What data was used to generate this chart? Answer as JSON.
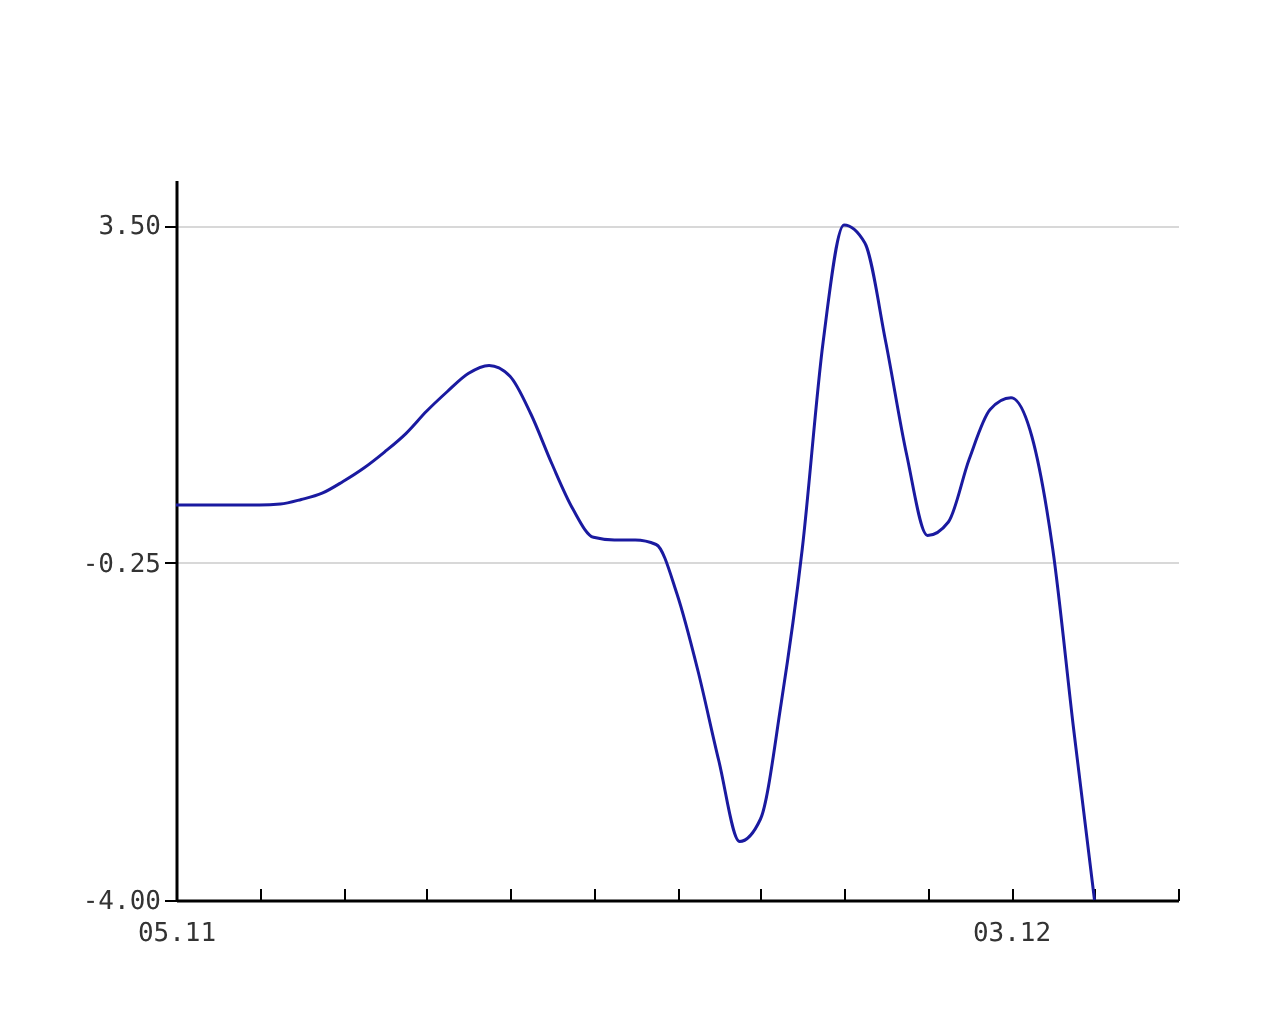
{
  "chart_data": {
    "type": "line",
    "categories": [
      "05.11",
      null,
      null,
      null,
      null,
      null,
      null,
      null,
      null,
      null,
      null,
      null,
      null,
      null,
      null,
      null,
      null,
      null,
      null,
      null,
      null,
      null,
      null,
      null,
      null,
      null,
      null,
      null,
      null,
      null,
      null,
      null,
      null,
      null,
      null,
      null,
      null,
      null,
      null,
      null,
      "03.12",
      null,
      null,
      null,
      null,
      null,
      null,
      null,
      null
    ],
    "series": [
      {
        "color": "#1a1aa0",
        "values": [
          0.39,
          0.39,
          0.39,
          0.39,
          0.39,
          0.4,
          0.45,
          0.52,
          0.65,
          0.8,
          0.98,
          1.18,
          1.43,
          1.65,
          1.85,
          1.94,
          1.82,
          1.4,
          0.85,
          0.35,
          0.03,
          0,
          0,
          -0.05,
          -0.6,
          -1.45,
          -2.45,
          -3.35,
          -3.1,
          -1.8,
          -0.1,
          2.2,
          3.5,
          3.3,
          2.2,
          0.95,
          0.05,
          0.2,
          0.9,
          1.45,
          1.58,
          1.15,
          -0.1,
          -2.1,
          -4.0,
          null,
          null,
          null,
          null
        ]
      }
    ],
    "ylim": [
      -4,
      4
    ],
    "yticks": [
      {
        "value": -4,
        "label": "-4.00"
      },
      {
        "value": -0.25,
        "label": "-0.25"
      },
      {
        "value": 3.5,
        "label": "3.50"
      }
    ],
    "grid": "y",
    "marker": "none",
    "line_style": "solid"
  }
}
